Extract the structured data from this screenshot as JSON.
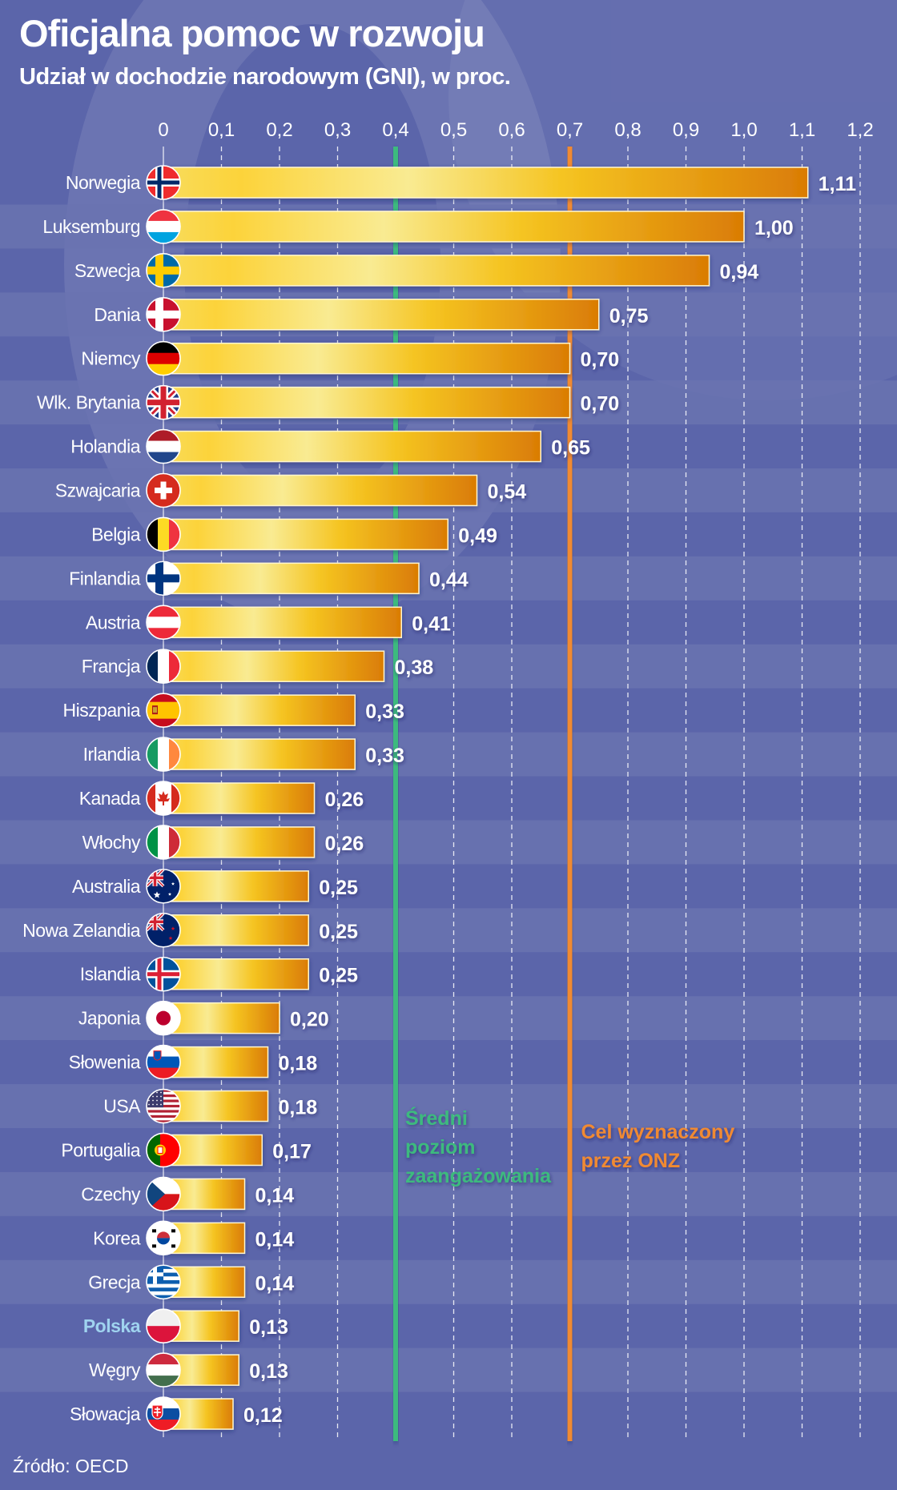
{
  "header": {
    "title": "Oficjalna pomoc w rozwoju",
    "subtitle": "Udział w dochodzie narodowym (GNI), w proc."
  },
  "source": "Źródło: OECD",
  "colors": {
    "background_dark": "#5b65aa",
    "background_light": "#6a73b0",
    "bar_light": "#f9ea8f",
    "bar_mid": "#f5c21f",
    "bar_dark": "#dc7e05",
    "average_line": "#3dba7e",
    "un_target_line": "#f08a30",
    "highlight_label": "#9fd3ef",
    "text": "#ffffff"
  },
  "chart_data": {
    "type": "bar",
    "orientation": "horizontal",
    "title": "Oficjalna pomoc w rozwoju",
    "subtitle": "Udział w dochodzie narodowym (GNI), w proc.",
    "xlabel": "",
    "ylabel": "",
    "xlim": [
      0,
      1.2
    ],
    "x_ticks": [
      0,
      0.1,
      0.2,
      0.3,
      0.4,
      0.5,
      0.6,
      0.7,
      0.8,
      0.9,
      1.0,
      1.1,
      1.2
    ],
    "x_tick_labels": [
      "0",
      "0,1",
      "0,2",
      "0,3",
      "0,4",
      "0,5",
      "0,6",
      "0,7",
      "0,8",
      "0,9",
      "1,0",
      "1,1",
      "1,2"
    ],
    "grid": true,
    "categories": [
      "Norwegia",
      "Luksemburg",
      "Szwecja",
      "Dania",
      "Niemcy",
      "Wlk. Brytania",
      "Holandia",
      "Szwajcaria",
      "Belgia",
      "Finlandia",
      "Austria",
      "Francja",
      "Hiszpania",
      "Irlandia",
      "Kanada",
      "Włochy",
      "Australia",
      "Nowa Zelandia",
      "Islandia",
      "Japonia",
      "Słowenia",
      "USA",
      "Portugalia",
      "Czechy",
      "Korea",
      "Grecja",
      "Polska",
      "Węgry",
      "Słowacja"
    ],
    "values": [
      1.11,
      1.0,
      0.94,
      0.75,
      0.7,
      0.7,
      0.65,
      0.54,
      0.49,
      0.44,
      0.41,
      0.38,
      0.33,
      0.33,
      0.26,
      0.26,
      0.25,
      0.25,
      0.25,
      0.2,
      0.18,
      0.18,
      0.17,
      0.14,
      0.14,
      0.14,
      0.13,
      0.13,
      0.12
    ],
    "value_labels": [
      "1,11",
      "1,00",
      "0,94",
      "0,75",
      "0,70",
      "0,70",
      "0,65",
      "0,54",
      "0,49",
      "0,44",
      "0,41",
      "0,38",
      "0,33",
      "0,33",
      "0,26",
      "0,26",
      "0,25",
      "0,25",
      "0,25",
      "0,20",
      "0,18",
      "0,18",
      "0,17",
      "0,14",
      "0,14",
      "0,14",
      "0,13",
      "0,13",
      "0,12"
    ],
    "flags": [
      "norway-flag",
      "luxembourg-flag",
      "sweden-flag",
      "denmark-flag",
      "germany-flag",
      "uk-flag",
      "netherlands-flag",
      "switzerland-flag",
      "belgium-flag",
      "finland-flag",
      "austria-flag",
      "france-flag",
      "spain-flag",
      "ireland-flag",
      "canada-flag",
      "italy-flag",
      "australia-flag",
      "new-zealand-flag",
      "iceland-flag",
      "japan-flag",
      "slovenia-flag",
      "usa-flag",
      "portugal-flag",
      "czech-flag",
      "korea-flag",
      "greece-flag",
      "poland-flag",
      "hungary-flag",
      "slovakia-flag"
    ],
    "highlighted": "Polska",
    "reference_lines": [
      {
        "name": "average",
        "value": 0.4,
        "label_lines": [
          "Średni",
          "poziom",
          "zaangażowania"
        ],
        "color": "#3dba7e"
      },
      {
        "name": "un-target",
        "value": 0.7,
        "label_lines": [
          "Cel wyznaczony",
          "przez ONZ"
        ],
        "color": "#f08a30"
      }
    ]
  }
}
